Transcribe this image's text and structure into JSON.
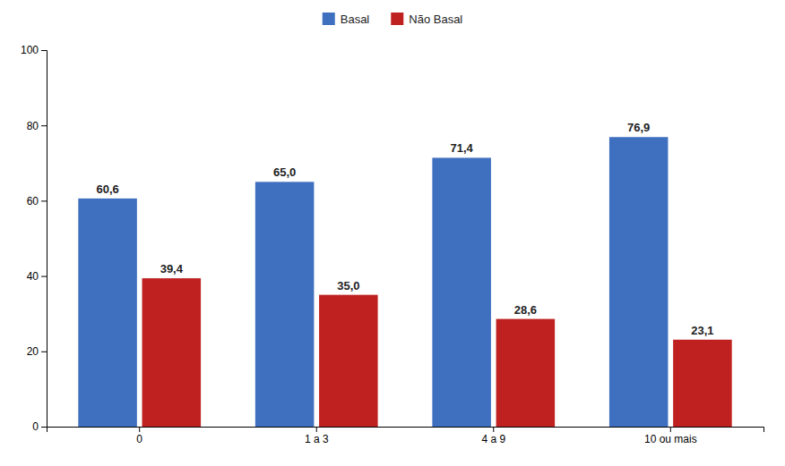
{
  "chart_data": {
    "type": "bar",
    "categories": [
      "0",
      "1 a 3",
      "4 a 9",
      "10 ou mais"
    ],
    "series": [
      {
        "name": "Basal",
        "color": "#3F6FBF",
        "values": [
          60.6,
          65.0,
          71.4,
          76.9
        ],
        "value_labels": [
          "60,6",
          "65,0",
          "71,4",
          "76,9"
        ]
      },
      {
        "name": "Não Basal",
        "color": "#BF2020",
        "values": [
          39.4,
          35.0,
          28.6,
          23.1
        ],
        "value_labels": [
          "39,4",
          "35,0",
          "28,6",
          "23,1"
        ]
      }
    ],
    "ylim": [
      0,
      100
    ],
    "yticks": [
      0,
      20,
      40,
      60,
      80,
      100
    ],
    "grid": false,
    "data_labels": true,
    "legend": "top"
  }
}
